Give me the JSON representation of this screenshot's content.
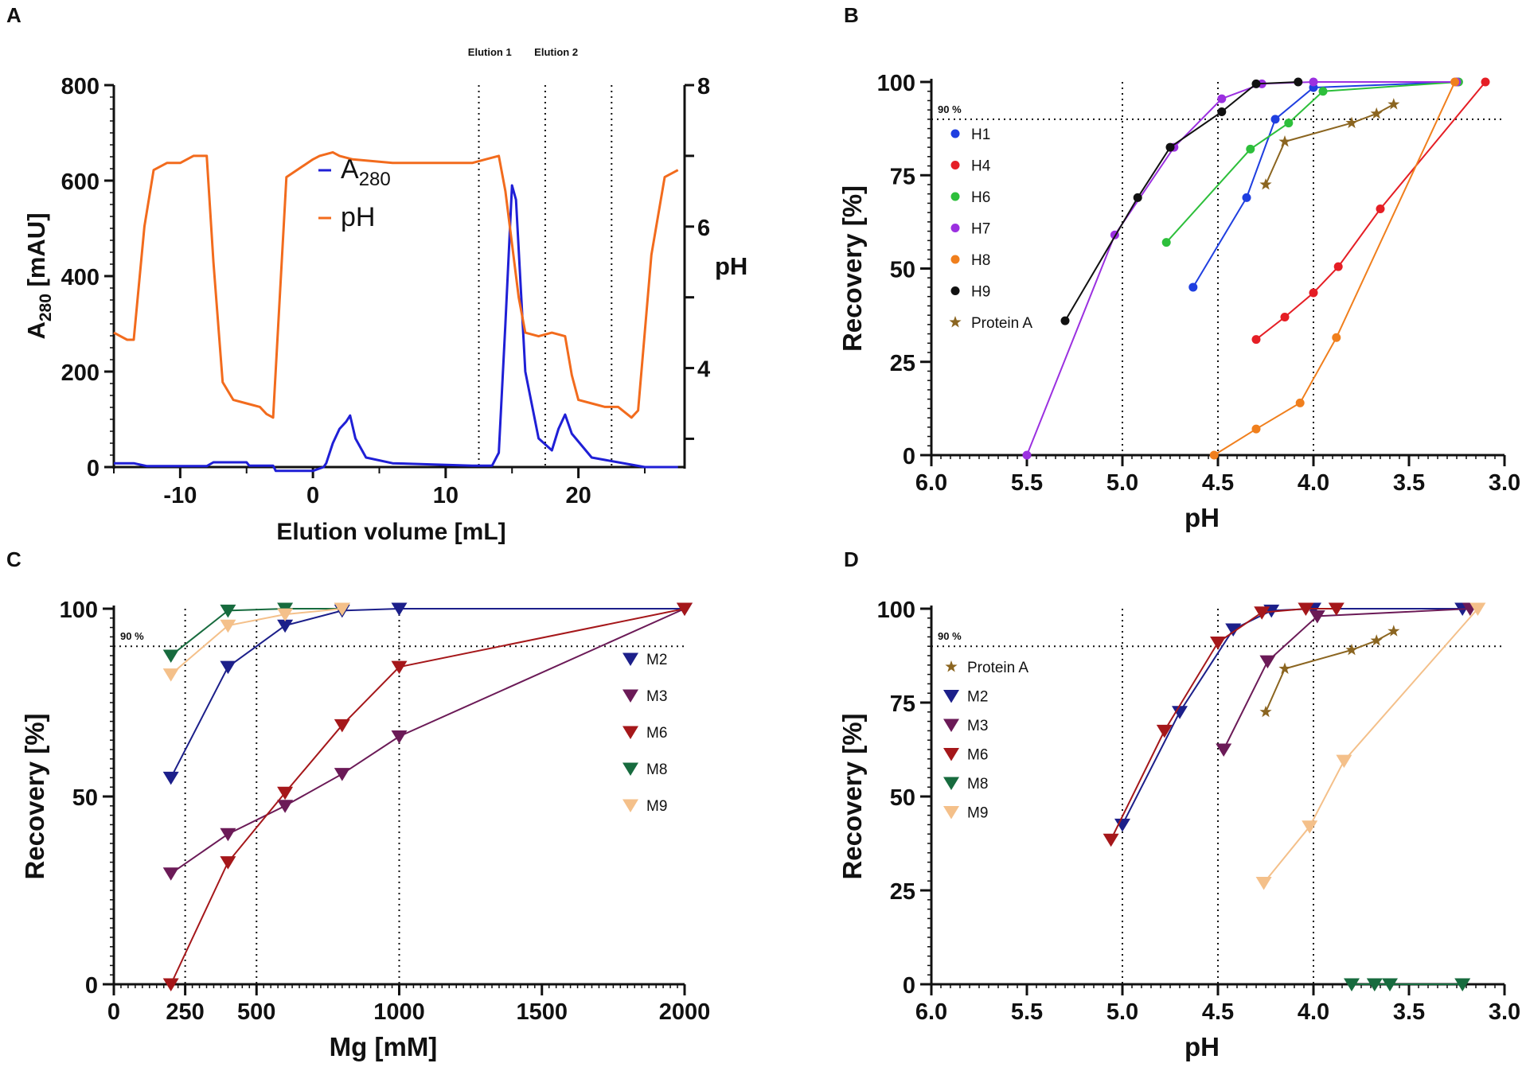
{
  "figure": {
    "panel_labels": [
      "A",
      "B",
      "C",
      "D"
    ]
  },
  "chart_data": [
    {
      "panel": "A",
      "type": "line",
      "xlabel": "Elution volume [mL]",
      "ylabel_left": "A",
      "ylabel_left_sub": "280",
      "ylabel_left_tail": " [mAU]",
      "ylabel_right": "pH",
      "xlim": [
        -15,
        28
      ],
      "ylim_left": [
        0,
        800
      ],
      "ylim_right": [
        2.6,
        8
      ],
      "xticks": [
        -10,
        0,
        10,
        20
      ],
      "yticks_left": [
        0,
        200,
        400,
        600,
        800
      ],
      "yticks_right": [
        4,
        6,
        8
      ],
      "vlines": [
        12.5,
        17.5,
        22.5
      ],
      "annotations": [
        {
          "text": "Elution 1",
          "x": 15
        },
        {
          "text": "Elution 2",
          "x": 20
        }
      ],
      "legend": [
        {
          "label": "A",
          "sub": "280",
          "color": "#1f1fd6"
        },
        {
          "label": "pH",
          "sub": "",
          "color": "#f26b1d"
        }
      ],
      "series": [
        {
          "name": "A280",
          "axis": "left",
          "color": "#1f1fd6",
          "points": [
            [
              -15,
              8
            ],
            [
              -13.5,
              8
            ],
            [
              -12.5,
              2
            ],
            [
              -9,
              2
            ],
            [
              -8,
              2
            ],
            [
              -7.5,
              10
            ],
            [
              -5,
              10
            ],
            [
              -4.8,
              3
            ],
            [
              -3,
              3
            ],
            [
              -2.8,
              -8
            ],
            [
              0,
              -8
            ],
            [
              0.3,
              -5
            ],
            [
              0.8,
              0
            ],
            [
              1,
              8
            ],
            [
              1.5,
              50
            ],
            [
              2,
              80
            ],
            [
              2.5,
              95
            ],
            [
              2.8,
              108
            ],
            [
              3.2,
              60
            ],
            [
              4,
              20
            ],
            [
              6,
              8
            ],
            [
              12,
              3
            ],
            [
              13.5,
              3
            ],
            [
              14,
              30
            ],
            [
              14.5,
              300
            ],
            [
              15,
              590
            ],
            [
              15.3,
              560
            ],
            [
              16,
              200
            ],
            [
              17,
              60
            ],
            [
              18,
              35
            ],
            [
              18.5,
              80
            ],
            [
              19,
              110
            ],
            [
              19.5,
              70
            ],
            [
              21,
              20
            ],
            [
              24,
              5
            ],
            [
              25,
              0
            ],
            [
              27.5,
              0
            ]
          ]
        },
        {
          "name": "pH",
          "axis": "right",
          "color": "#f26b1d",
          "points": [
            [
              -15,
              4.5
            ],
            [
              -14,
              4.4
            ],
            [
              -13.5,
              4.4
            ],
            [
              -12.7,
              6
            ],
            [
              -12,
              6.8
            ],
            [
              -11,
              6.9
            ],
            [
              -10,
              6.9
            ],
            [
              -9,
              7.0
            ],
            [
              -8,
              7.0
            ],
            [
              -7.5,
              5.5
            ],
            [
              -6.8,
              3.8
            ],
            [
              -6,
              3.55
            ],
            [
              -5,
              3.5
            ],
            [
              -4,
              3.45
            ],
            [
              -3.5,
              3.35
            ],
            [
              -3,
              3.3
            ],
            [
              -2,
              6.7
            ],
            [
              0,
              6.95
            ],
            [
              0.5,
              7.0
            ],
            [
              1.5,
              7.05
            ],
            [
              2,
              7.0
            ],
            [
              3,
              6.95
            ],
            [
              6,
              6.9
            ],
            [
              10,
              6.9
            ],
            [
              12,
              6.9
            ],
            [
              13,
              6.95
            ],
            [
              14,
              7.0
            ],
            [
              14.5,
              6.5
            ],
            [
              15.5,
              5.0
            ],
            [
              16,
              4.5
            ],
            [
              17,
              4.45
            ],
            [
              18,
              4.5
            ],
            [
              19,
              4.45
            ],
            [
              19.5,
              3.9
            ],
            [
              20,
              3.55
            ],
            [
              21,
              3.5
            ],
            [
              22,
              3.45
            ],
            [
              23,
              3.45
            ],
            [
              24,
              3.3
            ],
            [
              24.5,
              3.4
            ],
            [
              25.5,
              5.6
            ],
            [
              26.5,
              6.7
            ],
            [
              27.5,
              6.8
            ]
          ]
        }
      ]
    },
    {
      "panel": "B",
      "type": "line",
      "xlabel": "pH",
      "ylabel": "Recovery [%]",
      "xlim": [
        6,
        3
      ],
      "ylim": [
        0,
        100
      ],
      "xticks": [
        6.0,
        5.5,
        5.0,
        4.5,
        4.0,
        3.5,
        3.0
      ],
      "xtick_labels": [
        "6.0",
        "5.5",
        "5.0",
        "4.5",
        "4.0",
        "3.5",
        "3.0"
      ],
      "yticks": [
        0,
        25,
        50,
        75,
        100
      ],
      "vlines": [
        5.0,
        4.5,
        4.0
      ],
      "hline": 90,
      "hline_label": "90 %",
      "series": [
        {
          "name": "H1",
          "color": "#1f3fe0",
          "marker": "circle",
          "x": [
            4.63,
            4.35,
            4.2,
            4.0,
            3.25
          ],
          "y": [
            45,
            69,
            90,
            98.5,
            100
          ]
        },
        {
          "name": "H4",
          "color": "#e51e25",
          "marker": "circle",
          "x": [
            4.3,
            4.15,
            4.0,
            3.87,
            3.65,
            3.1
          ],
          "y": [
            31,
            37,
            43.5,
            50.5,
            66,
            100
          ]
        },
        {
          "name": "H6",
          "color": "#2dbf3b",
          "marker": "circle",
          "x": [
            4.77,
            4.33,
            4.13,
            3.95,
            3.24
          ],
          "y": [
            57,
            82,
            89,
            97.5,
            100
          ]
        },
        {
          "name": "H7",
          "color": "#9b30e0",
          "marker": "circle",
          "x": [
            5.5,
            5.04,
            4.73,
            4.48,
            4.27,
            4.0,
            3.25
          ],
          "y": [
            0,
            59,
            82.5,
            95.5,
            99.5,
            100,
            100
          ]
        },
        {
          "name": "H8",
          "color": "#f07f1d",
          "marker": "circle",
          "x": [
            4.52,
            4.3,
            4.07,
            3.88,
            3.26
          ],
          "y": [
            0,
            7,
            14,
            31.5,
            100
          ]
        },
        {
          "name": "H9",
          "color": "#111111",
          "marker": "circle",
          "x": [
            5.3,
            4.92,
            4.75,
            4.48,
            4.3,
            4.08
          ],
          "y": [
            36,
            69,
            82.5,
            92,
            99.5,
            100
          ]
        },
        {
          "name": "Protein A",
          "color": "#8b6520",
          "marker": "star",
          "x": [
            4.25,
            4.15,
            3.8,
            3.67,
            3.58
          ],
          "y": [
            72.5,
            84,
            89,
            91.5,
            94
          ]
        }
      ]
    },
    {
      "panel": "C",
      "type": "line",
      "xlabel": "Mg [mM]",
      "ylabel": "Recovery [%]",
      "xlim": [
        0,
        2000
      ],
      "ylim": [
        0,
        100
      ],
      "xticks": [
        0,
        250,
        500,
        1000,
        1500,
        2000
      ],
      "xtick_labels": [
        "0",
        "250",
        "500",
        "1000",
        "1500",
        "2000"
      ],
      "yticks": [
        0,
        50,
        100
      ],
      "vlines": [
        250,
        500,
        1000
      ],
      "hline": 90,
      "hline_label": "90 %",
      "series": [
        {
          "name": "M2",
          "color": "#1c1f8a",
          "marker": "triangle",
          "x": [
            200,
            400,
            600,
            800,
            1000,
            2000
          ],
          "y": [
            55,
            84.5,
            95.5,
            99.5,
            100,
            100
          ]
        },
        {
          "name": "M3",
          "color": "#6b1a57",
          "marker": "triangle",
          "x": [
            200,
            400,
            600,
            800,
            1000,
            2000
          ],
          "y": [
            29.5,
            40,
            47.5,
            56,
            66,
            100
          ]
        },
        {
          "name": "M6",
          "color": "#a5171a",
          "marker": "triangle",
          "x": [
            200,
            400,
            600,
            800,
            1000,
            2000
          ],
          "y": [
            0,
            32.5,
            51,
            69,
            84.5,
            100
          ]
        },
        {
          "name": "M8",
          "color": "#176b3e",
          "marker": "triangle",
          "x": [
            200,
            400,
            600,
            800
          ],
          "y": [
            87.5,
            99.5,
            100,
            100
          ]
        },
        {
          "name": "M9",
          "color": "#f4c08a",
          "marker": "triangle",
          "x": [
            200,
            400,
            600,
            800
          ],
          "y": [
            82.5,
            95.5,
            98.5,
            100
          ]
        }
      ]
    },
    {
      "panel": "D",
      "type": "line",
      "xlabel": "pH",
      "ylabel": "Recovery [%]",
      "xlim": [
        6,
        3
      ],
      "ylim": [
        0,
        100
      ],
      "xticks": [
        6.0,
        5.5,
        5.0,
        4.5,
        4.0,
        3.5,
        3.0
      ],
      "xtick_labels": [
        "6.0",
        "5.5",
        "5.0",
        "4.5",
        "4.0",
        "3.5",
        "3.0"
      ],
      "yticks": [
        0,
        25,
        50,
        75,
        100
      ],
      "vlines": [
        5.0,
        4.5,
        4.0
      ],
      "hline": 90,
      "hline_label": "90 %",
      "series": [
        {
          "name": "Protein A",
          "color": "#8b6520",
          "marker": "star",
          "x": [
            4.25,
            4.15,
            3.8,
            3.67,
            3.58
          ],
          "y": [
            72.5,
            84,
            89,
            91.5,
            94
          ]
        },
        {
          "name": "M2",
          "color": "#1c1f8a",
          "marker": "triangle",
          "x": [
            5.0,
            4.7,
            4.42,
            4.22,
            4.0,
            3.22
          ],
          "y": [
            42.5,
            72.5,
            94.5,
            99.5,
            100,
            100
          ]
        },
        {
          "name": "M3",
          "color": "#6b1a57",
          "marker": "triangle",
          "x": [
            4.47,
            4.24,
            3.98,
            3.18
          ],
          "y": [
            62.5,
            86,
            98,
            100
          ]
        },
        {
          "name": "M6",
          "color": "#a5171a",
          "marker": "triangle",
          "x": [
            5.06,
            4.78,
            4.5,
            4.27,
            4.04,
            3.88
          ],
          "y": [
            38.5,
            67.5,
            91,
            99,
            100,
            100
          ]
        },
        {
          "name": "M8",
          "color": "#176b3e",
          "marker": "triangle",
          "x": [
            3.8,
            3.68,
            3.6,
            3.22
          ],
          "y": [
            0,
            0,
            0,
            0
          ]
        },
        {
          "name": "M9",
          "color": "#f4c08a",
          "marker": "triangle",
          "x": [
            4.26,
            4.02,
            3.84,
            3.14
          ],
          "y": [
            27,
            42,
            59.5,
            100
          ]
        }
      ]
    }
  ]
}
